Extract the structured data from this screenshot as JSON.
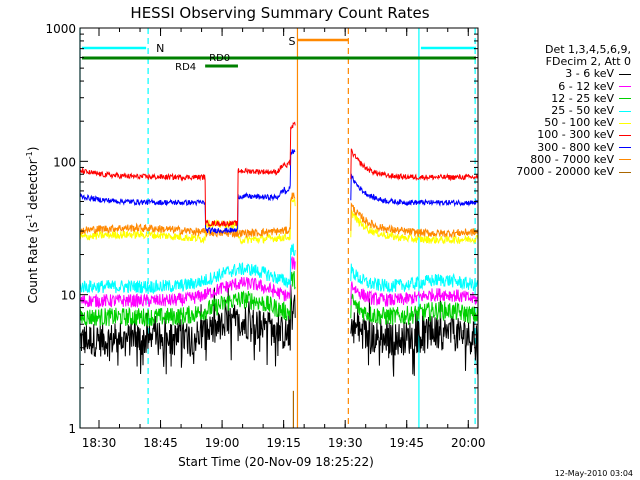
{
  "chart_data": {
    "type": "line",
    "title": "HESSI Observing Summary Count Rates",
    "xlabel": "Start Time (20-Nov-09 18:25:22)",
    "ylabel_main": "Count Rate (s",
    "ylabel_sup1": "-1",
    "ylabel_mid": " detector",
    "ylabel_sup2": "-1",
    "ylabel_end": ")",
    "yscale": "log",
    "ylim": [
      1,
      1000
    ],
    "xlim_minutes": [
      0,
      97
    ],
    "x_ticks": [
      {
        "label": "18:30",
        "min": 4.63
      },
      {
        "label": "18:45",
        "min": 19.63
      },
      {
        "label": "19:00",
        "min": 34.63
      },
      {
        "label": "19:15",
        "min": 49.63
      },
      {
        "label": "19:30",
        "min": 64.63
      },
      {
        "label": "19:45",
        "min": 79.63
      },
      {
        "label": "20:00",
        "min": 94.63
      }
    ],
    "y_ticks": [
      {
        "label": "1",
        "v": 1
      },
      {
        "label": "10",
        "v": 10
      },
      {
        "label": "100",
        "v": 100
      },
      {
        "label": "1000",
        "v": 1000
      }
    ],
    "legend_header": [
      "Det 1,3,4,5,6,9,",
      "FDecim 2, Att 0"
    ],
    "series": [
      {
        "name": "3 - 6 keV",
        "color": "#000000",
        "level": 4.6,
        "noise": 0.13
      },
      {
        "name": "6 - 12 keV",
        "color": "#ff00ff",
        "level": 9.0,
        "noise": 0.05
      },
      {
        "name": "12 - 25 keV",
        "color": "#00d000",
        "level": 6.8,
        "noise": 0.07
      },
      {
        "name": "25 - 50 keV",
        "color": "#00ffff",
        "level": 11.5,
        "noise": 0.05
      },
      {
        "name": "50 - 100 keV",
        "color": "#ffff00",
        "level": 25.0,
        "noise": 0.03
      },
      {
        "name": "100 - 300 keV",
        "color": "#ff0000",
        "level": 76.0,
        "noise": 0.02
      },
      {
        "name": "300 - 800 keV",
        "color": "#0000ff",
        "level": 49.0,
        "noise": 0.02
      },
      {
        "name": "800 - 7000 keV",
        "color": "#ff8800",
        "level": 28.0,
        "noise": 0.03
      },
      {
        "name": "7000 - 20000 keV",
        "color": "#aa6600",
        "level": 1.0,
        "noise": 0
      }
    ],
    "annotations": {
      "night_label": "N",
      "saa_label": "S",
      "rd0_label": "RD0",
      "rd4_label": "RD4",
      "night_color": "#00ffff",
      "saa_color": "#ff8800",
      "decim_color": "#008000",
      "night_segments_min": [
        [
          0,
          16.6
        ],
        [
          82.6,
          97
        ]
      ],
      "night_markers_min": [
        0,
        16.6,
        82.6,
        96.3
      ],
      "saa_start_min": 53.0,
      "saa_end_min": 65.4,
      "data_gap_min": [
        52.5,
        66.0
      ],
      "decimation_bars_min": [
        [
          0,
          30.5
        ],
        [
          30.5,
          97
        ]
      ],
      "rd4_bar_min": [
        30.5,
        38.5
      ]
    },
    "timestamp": "12-May-2010 03:04"
  }
}
